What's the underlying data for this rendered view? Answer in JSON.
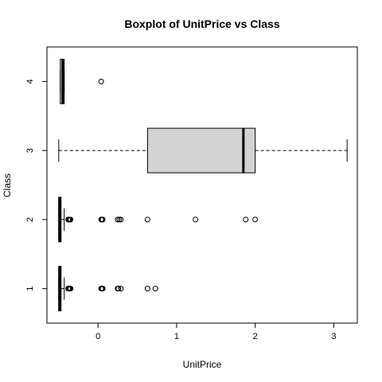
{
  "chart_data": {
    "type": "boxplot",
    "orientation": "horizontal",
    "title": "Boxplot of UnitPrice vs Class",
    "xlabel": "UnitPrice",
    "ylabel": "Class",
    "xlim": [
      -0.65,
      3.3
    ],
    "ylim": [
      0.5,
      4.5
    ],
    "x_ticks": [
      0,
      1,
      2,
      3
    ],
    "y_ticks": [
      1,
      2,
      3,
      4
    ],
    "grid": false,
    "box_fill": "#d3d3d3",
    "line_color": "#000000",
    "groups": [
      {
        "category": "1",
        "whisker_low": -0.5,
        "q1": -0.5,
        "median": -0.49,
        "q3": -0.47,
        "whisker_high": -0.43,
        "outliers": [
          -0.38,
          -0.37,
          -0.36,
          -0.35,
          0.04,
          0.05,
          0.06,
          0.25,
          0.26,
          0.29,
          0.63,
          0.73
        ]
      },
      {
        "category": "2",
        "whisker_low": -0.5,
        "q1": -0.5,
        "median": -0.49,
        "q3": -0.47,
        "whisker_high": -0.43,
        "outliers": [
          -0.38,
          -0.37,
          -0.36,
          -0.35,
          0.04,
          0.05,
          0.06,
          0.25,
          0.27,
          0.29,
          0.63,
          1.24,
          1.88,
          2.0
        ]
      },
      {
        "category": "3",
        "whisker_low": -0.5,
        "q1": 0.63,
        "median": 1.85,
        "q3": 2.0,
        "whisker_high": 3.17,
        "outliers": []
      },
      {
        "category": "4",
        "whisker_low": -0.48,
        "q1": -0.48,
        "median": -0.45,
        "q3": -0.43,
        "whisker_high": -0.43,
        "outliers": [
          0.04
        ]
      }
    ]
  }
}
